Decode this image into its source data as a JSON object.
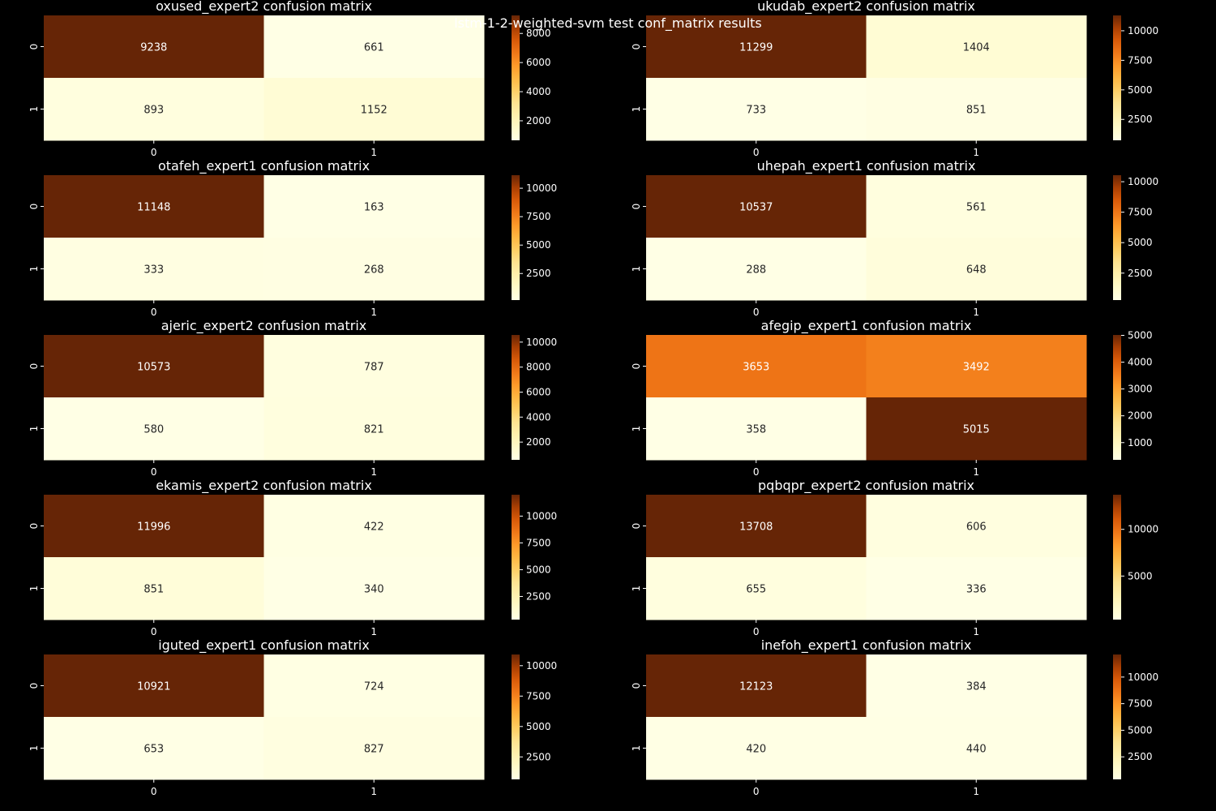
{
  "figure": {
    "suptitle": "lstm-1-2-weighted-svm test conf_matrix results",
    "background": "#000000",
    "colormap": "YlOrBr",
    "text_colors": {
      "dark_cell": "#ffffff",
      "light_cell": "#262626"
    }
  },
  "chart_data": [
    {
      "type": "heatmap",
      "title": "oxused_expert2 confusion matrix",
      "xticklabels": [
        "0",
        "1"
      ],
      "yticklabels": [
        "0",
        "1"
      ],
      "values": [
        [
          9238,
          661
        ],
        [
          893,
          1152
        ]
      ],
      "colorbar": {
        "ticks": [
          2000,
          4000,
          6000,
          8000
        ]
      }
    },
    {
      "type": "heatmap",
      "title": "ukudab_expert2 confusion matrix",
      "xticklabels": [
        "0",
        "1"
      ],
      "yticklabels": [
        "0",
        "1"
      ],
      "values": [
        [
          11299,
          1404
        ],
        [
          733,
          851
        ]
      ],
      "colorbar": {
        "ticks": [
          2500,
          5000,
          7500,
          10000
        ]
      }
    },
    {
      "type": "heatmap",
      "title": "otafeh_expert1 confusion matrix",
      "xticklabels": [
        "0",
        "1"
      ],
      "yticklabels": [
        "0",
        "1"
      ],
      "values": [
        [
          11148,
          163
        ],
        [
          333,
          268
        ]
      ],
      "colorbar": {
        "ticks": [
          2500,
          5000,
          7500,
          10000
        ]
      }
    },
    {
      "type": "heatmap",
      "title": "uhepah_expert1 confusion matrix",
      "xticklabels": [
        "0",
        "1"
      ],
      "yticklabels": [
        "0",
        "1"
      ],
      "values": [
        [
          10537,
          561
        ],
        [
          288,
          648
        ]
      ],
      "colorbar": {
        "ticks": [
          2500,
          5000,
          7500,
          10000
        ]
      }
    },
    {
      "type": "heatmap",
      "title": "ajeric_expert2 confusion matrix",
      "xticklabels": [
        "0",
        "1"
      ],
      "yticklabels": [
        "0",
        "1"
      ],
      "values": [
        [
          10573,
          787
        ],
        [
          580,
          821
        ]
      ],
      "colorbar": {
        "ticks": [
          2000,
          4000,
          6000,
          8000,
          10000
        ]
      }
    },
    {
      "type": "heatmap",
      "title": "afegip_expert1 confusion matrix",
      "xticklabels": [
        "0",
        "1"
      ],
      "yticklabels": [
        "0",
        "1"
      ],
      "values": [
        [
          3653,
          3492
        ],
        [
          358,
          5015
        ]
      ],
      "colorbar": {
        "ticks": [
          1000,
          2000,
          3000,
          4000,
          5000
        ]
      }
    },
    {
      "type": "heatmap",
      "title": "ekamis_expert2 confusion matrix",
      "xticklabels": [
        "0",
        "1"
      ],
      "yticklabels": [
        "0",
        "1"
      ],
      "values": [
        [
          11996,
          422
        ],
        [
          851,
          340
        ]
      ],
      "colorbar": {
        "ticks": [
          2500,
          5000,
          7500,
          10000
        ]
      }
    },
    {
      "type": "heatmap",
      "title": "pqbqpr_expert2 confusion matrix",
      "xticklabels": [
        "0",
        "1"
      ],
      "yticklabels": [
        "0",
        "1"
      ],
      "values": [
        [
          13708,
          606
        ],
        [
          655,
          336
        ]
      ],
      "colorbar": {
        "ticks": [
          5000,
          10000
        ]
      }
    },
    {
      "type": "heatmap",
      "title": "iguted_expert1 confusion matrix",
      "xticklabels": [
        "0",
        "1"
      ],
      "yticklabels": [
        "0",
        "1"
      ],
      "values": [
        [
          10921,
          724
        ],
        [
          653,
          827
        ]
      ],
      "colorbar": {
        "ticks": [
          2500,
          5000,
          7500,
          10000
        ]
      }
    },
    {
      "type": "heatmap",
      "title": "inefoh_expert1 confusion matrix",
      "xticklabels": [
        "0",
        "1"
      ],
      "yticklabels": [
        "0",
        "1"
      ],
      "values": [
        [
          12123,
          384
        ],
        [
          420,
          440
        ]
      ],
      "colorbar": {
        "ticks": [
          2500,
          5000,
          7500,
          10000
        ]
      }
    }
  ]
}
